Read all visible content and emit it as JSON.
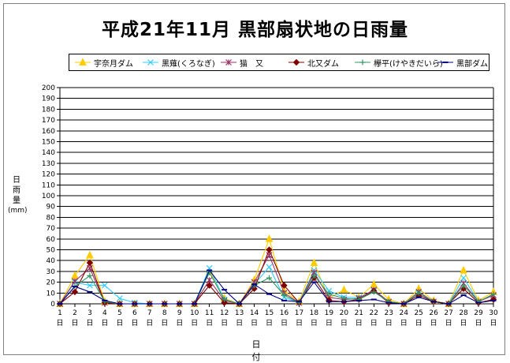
{
  "chart_data": {
    "type": "line",
    "title": "平成21年11月 黒部扇状地の日雨量",
    "ylabel_lines": [
      "日",
      "雨",
      "量"
    ],
    "ylabel_unit": "(mm)",
    "xlabel": "日　付",
    "x_day_suffix": "日",
    "ylim": [
      0,
      200
    ],
    "yticks": [
      0,
      10,
      20,
      30,
      40,
      50,
      60,
      70,
      80,
      90,
      100,
      110,
      120,
      130,
      140,
      150,
      160,
      170,
      180,
      190,
      200
    ],
    "x": [
      1,
      2,
      3,
      4,
      5,
      6,
      7,
      8,
      9,
      10,
      11,
      12,
      13,
      14,
      15,
      16,
      17,
      18,
      19,
      20,
      21,
      22,
      23,
      24,
      25,
      26,
      27,
      28,
      29,
      30
    ],
    "grid": true,
    "legend_position": "top",
    "series": [
      {
        "name": "宇奈月ダム",
        "color": "#ffcc00",
        "marker": "triangle",
        "values": [
          0,
          26,
          45,
          2,
          0,
          0,
          0,
          0,
          0,
          0,
          30,
          5,
          0,
          22,
          60,
          12,
          2,
          38,
          5,
          13,
          6,
          18,
          4,
          0,
          14,
          3,
          0,
          31,
          3,
          11
        ]
      },
      {
        "name": "黒薙(くろなぎ)",
        "color": "#33ccff",
        "marker": "x",
        "values": [
          0,
          20,
          17,
          17,
          5,
          1,
          0,
          0,
          0,
          0,
          33,
          4,
          0,
          18,
          34,
          6,
          1,
          31,
          12,
          6,
          6,
          12,
          2,
          0,
          10,
          2,
          0,
          24,
          2,
          8
        ]
      },
      {
        "name": "猫　又",
        "color": "#993366",
        "marker": "star",
        "values": [
          0,
          21,
          33,
          1,
          0,
          0,
          0,
          0,
          0,
          0,
          22,
          3,
          0,
          20,
          45,
          10,
          1,
          29,
          6,
          4,
          5,
          13,
          2,
          0,
          11,
          2,
          0,
          19,
          2,
          8
        ]
      },
      {
        "name": "北又ダム",
        "color": "#800000",
        "marker": "diamond",
        "values": [
          0,
          11,
          38,
          1,
          0,
          0,
          0,
          0,
          0,
          0,
          17,
          1,
          0,
          14,
          50,
          17,
          1,
          24,
          3,
          2,
          4,
          12,
          1,
          0,
          8,
          2,
          0,
          14,
          1,
          4
        ]
      },
      {
        "name": "欅平(けやきだいら)",
        "color": "#339966",
        "marker": "plus",
        "values": [
          0,
          16,
          26,
          2,
          0,
          0,
          0,
          0,
          0,
          0,
          29,
          4,
          0,
          17,
          24,
          8,
          1,
          26,
          9,
          5,
          4,
          11,
          2,
          0,
          10,
          2,
          0,
          17,
          2,
          9
        ]
      },
      {
        "name": "黒部ダム",
        "color": "#000080",
        "marker": "dash",
        "values": [
          0,
          16,
          11,
          3,
          0,
          0,
          0,
          0,
          0,
          0,
          31,
          13,
          0,
          18,
          9,
          3,
          2,
          20,
          2,
          2,
          3,
          4,
          1,
          0,
          6,
          2,
          0,
          8,
          1,
          3
        ]
      }
    ]
  }
}
